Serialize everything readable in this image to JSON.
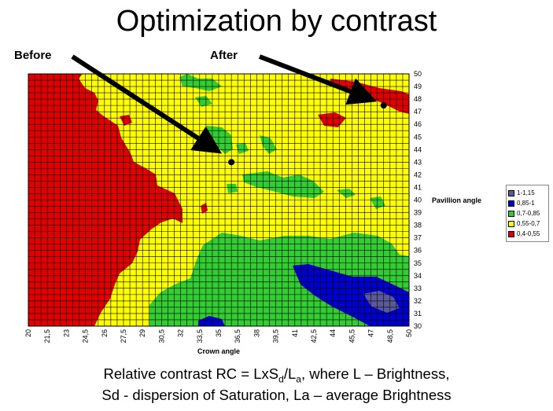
{
  "title": "Optimization by contrast",
  "callouts": {
    "before": "Before",
    "after": "After"
  },
  "footer": {
    "line1_prefix": "Relative contrast RC = LxS",
    "line1_sub1": "d",
    "line1_mid": "/L",
    "line1_sub2": "a",
    "line1_suffix": ", where L – Brightness,",
    "line2": "Sd - dispersion of Saturation, La – average Brightness"
  },
  "colors": {
    "red": "#e00000",
    "yellow": "#ffff00",
    "green": "#33cc33",
    "blue": "#0000cc",
    "darkblue": "#5a5a9a",
    "grid": "#000000"
  },
  "chart_data": {
    "type": "heatmap",
    "xlabel": "Crown angle",
    "ylabel": "Pavillion angle",
    "x_ticks": [
      "20",
      "21,5",
      "23",
      "24,5",
      "26",
      "27,5",
      "29",
      "30,5",
      "32",
      "33,5",
      "35",
      "36,5",
      "38",
      "39,5",
      "41",
      "42,5",
      "44",
      "45,5",
      "47",
      "48,5",
      "50"
    ],
    "y_ticks": [
      "30",
      "31",
      "32",
      "33",
      "34",
      "35",
      "36",
      "37",
      "38",
      "39",
      "40",
      "41",
      "42",
      "43",
      "44",
      "45",
      "46",
      "47",
      "48",
      "49",
      "50"
    ],
    "xlim": [
      20,
      50
    ],
    "ylim": [
      30,
      50
    ],
    "legend": [
      {
        "label": "1-1,15",
        "color": "#5a5a9a"
      },
      {
        "label": "0,85-1",
        "color": "#0000cc"
      },
      {
        "label": "0,7-0,85",
        "color": "#33cc33"
      },
      {
        "label": "0,55-0,7",
        "color": "#ffff00"
      },
      {
        "label": "0,4-0,55",
        "color": "#e00000"
      }
    ],
    "markers": [
      {
        "name": "Before",
        "x": 36,
        "y": 43
      },
      {
        "name": "After",
        "x": 48,
        "y": 47.5
      }
    ]
  }
}
